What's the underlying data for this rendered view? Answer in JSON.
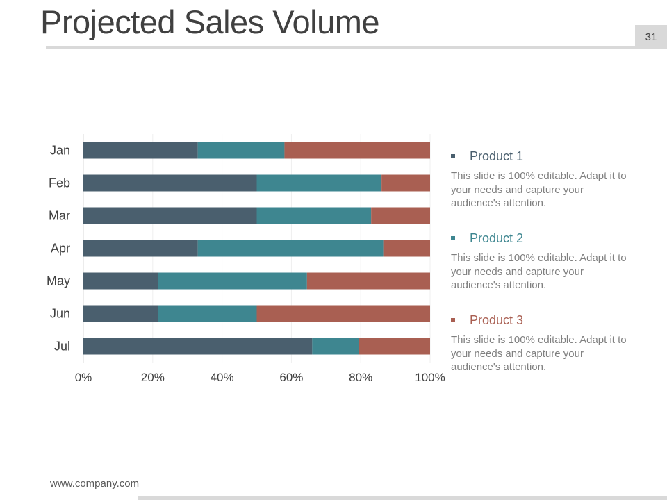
{
  "slide": {
    "title": "Projected Sales Volume",
    "page_number": "31",
    "footer": "www.company.com"
  },
  "legend": [
    {
      "name": "Product 1",
      "description": "This slide is 100% editable. Adapt it to your needs and capture your audience's attention.",
      "color": "#4a5f6e"
    },
    {
      "name": "Product  2",
      "description": "This slide is 100% editable. Adapt it to your needs and capture your audience's attention.",
      "color": "#3e8690"
    },
    {
      "name": "Product 3",
      "description": "This slide is 100% editable. Adapt it to your needs and capture your audience's attention.",
      "color": "#a95f52"
    }
  ],
  "chart_data": {
    "type": "bar",
    "orientation": "horizontal",
    "stacked": "percent",
    "categories": [
      "Jan",
      "Feb",
      "Mar",
      "Apr",
      "May",
      "Jun",
      "Jul"
    ],
    "series": [
      {
        "name": "Product 1",
        "color": "#4a5f6e",
        "values": [
          33,
          50,
          50,
          33,
          21.5,
          21.5,
          66
        ]
      },
      {
        "name": "Product  2",
        "color": "#3e8690",
        "values": [
          25,
          36,
          33,
          53.5,
          43,
          28.5,
          13.5
        ]
      },
      {
        "name": "Product 3",
        "color": "#a95f52",
        "values": [
          42,
          14,
          17,
          13.5,
          35.5,
          50,
          20.5
        ]
      }
    ],
    "x_ticks": [
      "0%",
      "20%",
      "40%",
      "60%",
      "80%",
      "100%"
    ],
    "xlim": [
      0,
      100
    ],
    "grid": true,
    "legend_position": "right"
  }
}
